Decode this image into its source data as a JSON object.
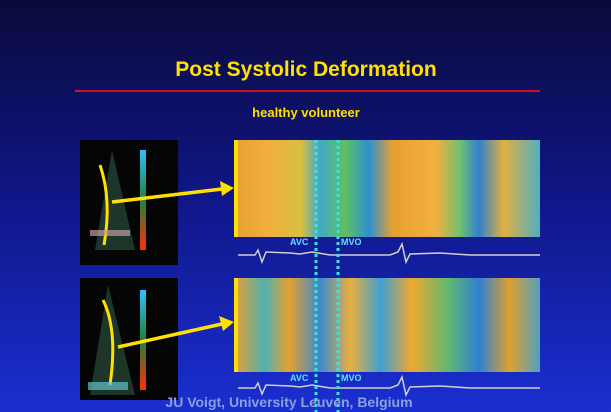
{
  "slide": {
    "title": "Post Systolic Deformation",
    "subtitle": "healthy volunteer",
    "panels": [
      {
        "labels": [
          "AVC",
          "MVO"
        ]
      },
      {
        "labels": [
          "AVC",
          "MVO"
        ]
      }
    ],
    "footer": "JU Voigt, University Leuven, Belgium"
  }
}
